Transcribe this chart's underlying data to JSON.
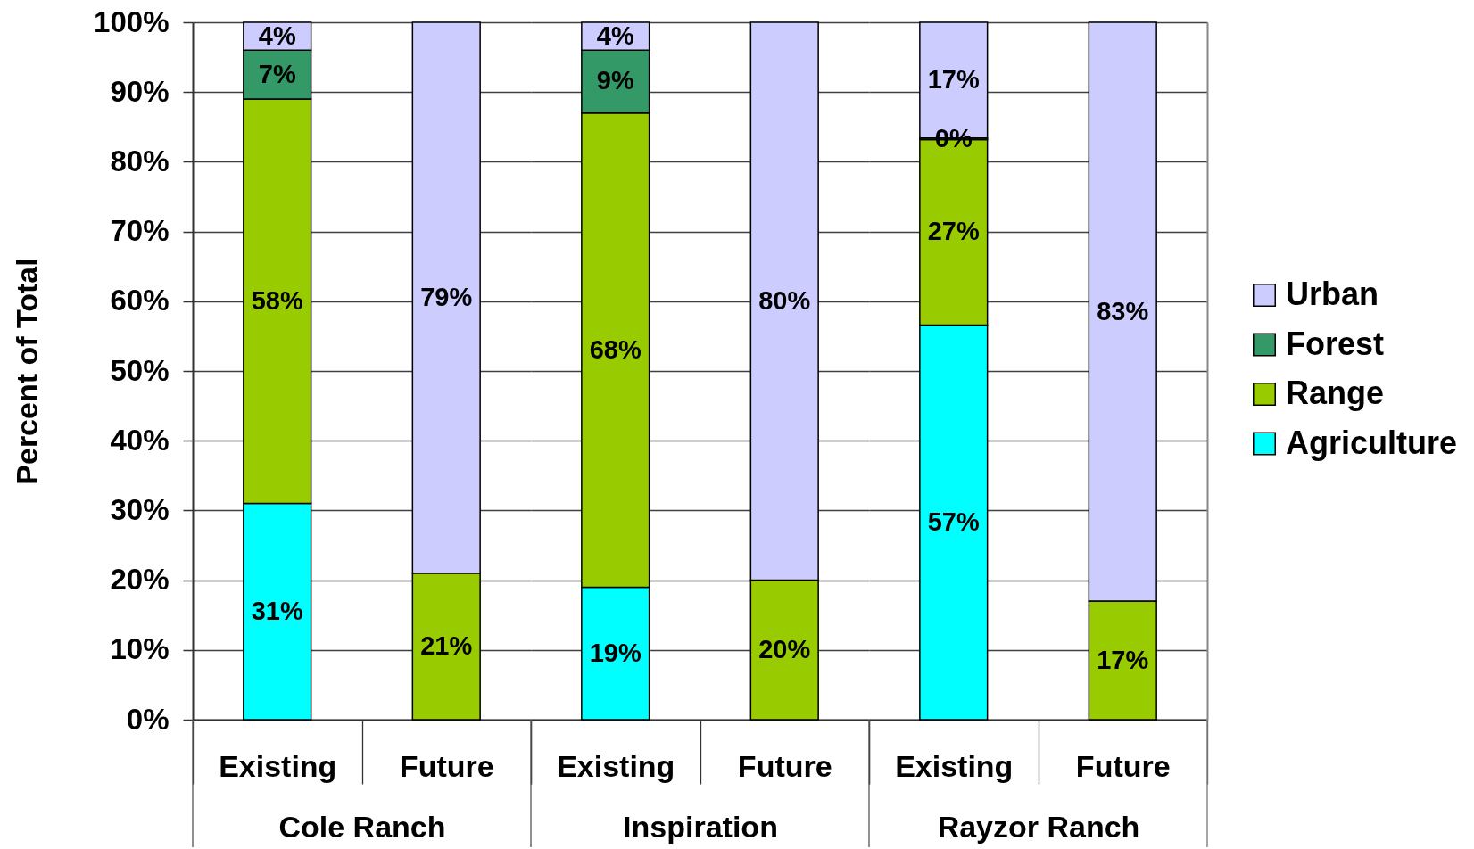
{
  "chart_data": [
    {
      "type": "bar",
      "stacked": true,
      "xlabel": "Cole Ranch",
      "ylabel": "Percent of Total",
      "categories": [
        "Existing",
        "Future"
      ],
      "series": [
        {
          "name": "Agriculture",
          "color": "#00ffff",
          "values": [
            31,
            null
          ],
          "value_labels": [
            "31%",
            null
          ]
        },
        {
          "name": "Range",
          "color": "#99cc00",
          "values": [
            58,
            21
          ],
          "value_labels": [
            "58%",
            "21%"
          ]
        },
        {
          "name": "Forest",
          "color": "#339966",
          "values": [
            7,
            null
          ],
          "value_labels": [
            "7%",
            null
          ]
        },
        {
          "name": "Urban",
          "color": "#ccccff",
          "values": [
            4,
            79
          ],
          "value_labels": [
            "4%",
            "79%"
          ]
        }
      ],
      "ylim": [
        0,
        100
      ],
      "yticks": [
        {
          "value": 0,
          "label": "0%"
        },
        {
          "value": 10,
          "label": "10%"
        },
        {
          "value": 20,
          "label": "20%"
        },
        {
          "value": 30,
          "label": "30%"
        },
        {
          "value": 40,
          "label": "40%"
        },
        {
          "value": 50,
          "label": "50%"
        },
        {
          "value": 60,
          "label": "60%"
        },
        {
          "value": 70,
          "label": "70%"
        },
        {
          "value": 80,
          "label": "80%"
        },
        {
          "value": 90,
          "label": "90%"
        },
        {
          "value": 100,
          "label": "100%"
        }
      ],
      "grid": "y",
      "legend": "right"
    },
    {
      "type": "bar",
      "stacked": true,
      "xlabel": "Inspiration",
      "categories": [
        "Existing",
        "Future"
      ],
      "series": [
        {
          "color": "#00ffff",
          "values": [
            19,
            null
          ],
          "value_labels": [
            "19%",
            null
          ]
        },
        {
          "color": "#99cc00",
          "values": [
            68,
            20
          ],
          "value_labels": [
            "68%",
            "20%"
          ]
        },
        {
          "color": "#339966",
          "values": [
            9,
            null
          ],
          "value_labels": [
            "9%",
            null
          ]
        },
        {
          "color": "#ccccff",
          "values": [
            4,
            80
          ],
          "value_labels": [
            "4%",
            "80%"
          ]
        }
      ],
      "ylim": [
        0,
        100
      ],
      "yticks": [
        {
          "value": 0,
          "label": null
        },
        {
          "value": 10,
          "label": null
        },
        {
          "value": 20,
          "label": null
        },
        {
          "value": 30,
          "label": null
        },
        {
          "value": 40,
          "label": null
        },
        {
          "value": 50,
          "label": null
        },
        {
          "value": 60,
          "label": null
        },
        {
          "value": 70,
          "label": null
        },
        {
          "value": 80,
          "label": null
        },
        {
          "value": 90,
          "label": null
        },
        {
          "value": 100,
          "label": null
        }
      ],
      "grid": "y",
      "tick_labels": "x"
    },
    {
      "type": "bar",
      "stacked": true,
      "xlabel": "Rayzor Ranch",
      "categories": [
        "Existing",
        "Future"
      ],
      "series": [
        {
          "color": "#00ffff",
          "values": [
            56.6,
            null
          ],
          "value_labels": [
            "57%",
            null
          ]
        },
        {
          "color": "#99cc00",
          "values": [
            26.6,
            17
          ],
          "value_labels": [
            "27%",
            "17%"
          ]
        },
        {
          "color": "#339966",
          "values": [
            0.2,
            null
          ],
          "value_labels": [
            "0%",
            null
          ]
        },
        {
          "color": "#ccccff",
          "values": [
            16.6,
            83
          ],
          "value_labels": [
            "17%",
            "83%"
          ]
        }
      ],
      "ylim": [
        0,
        100
      ],
      "yticks": [
        {
          "value": 0,
          "label": null
        },
        {
          "value": 10,
          "label": null
        },
        {
          "value": 20,
          "label": null
        },
        {
          "value": 30,
          "label": null
        },
        {
          "value": 40,
          "label": null
        },
        {
          "value": 50,
          "label": null
        },
        {
          "value": 60,
          "label": null
        },
        {
          "value": 70,
          "label": null
        },
        {
          "value": 80,
          "label": null
        },
        {
          "value": 90,
          "label": null
        },
        {
          "value": 100,
          "label": null
        }
      ],
      "grid": "y",
      "tick_labels": "x"
    }
  ]
}
